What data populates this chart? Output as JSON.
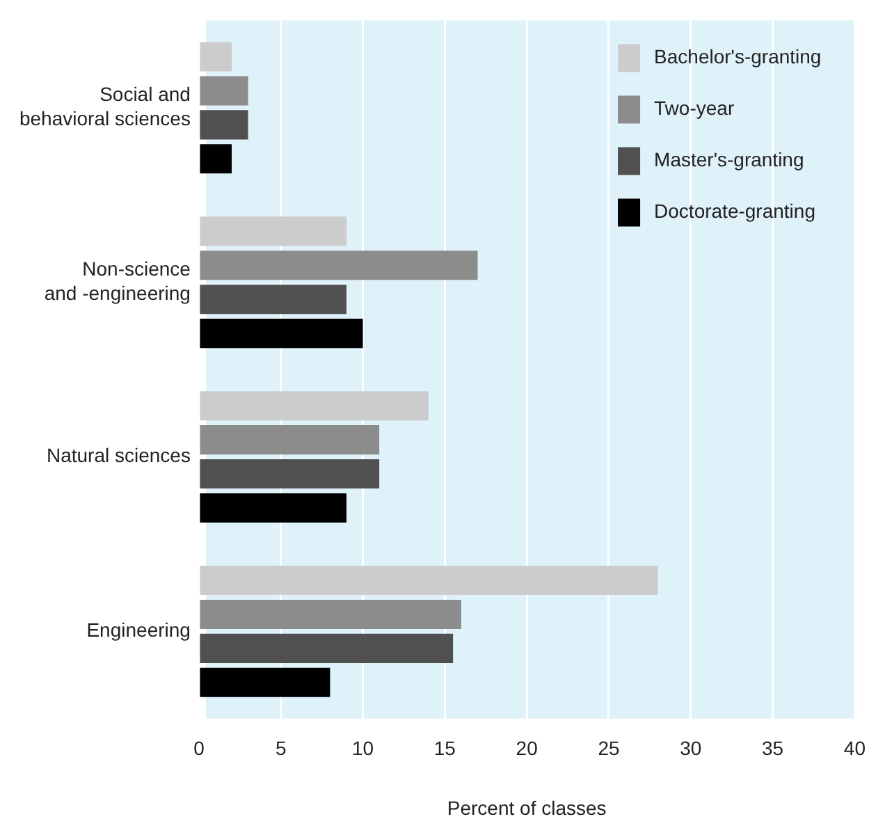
{
  "chart_data": {
    "type": "bar",
    "orientation": "horizontal",
    "xlabel": "Percent of classes",
    "categories": [
      "Social and\nbehavioral sciences",
      "Non-science\nand -engineering",
      "Natural sciences",
      "Engineering"
    ],
    "series": [
      {
        "name": "Bachelor's-granting",
        "color": "#cccccc",
        "values": [
          2,
          9,
          14,
          28
        ]
      },
      {
        "name": "Two-year",
        "color": "#8c8c8c",
        "values": [
          3,
          17,
          11,
          16
        ]
      },
      {
        "name": "Master's-granting",
        "color": "#505050",
        "values": [
          3,
          9,
          11,
          15.5
        ]
      },
      {
        "name": "Doctorate-granting",
        "color": "#000000",
        "values": [
          2,
          10,
          9,
          8
        ]
      }
    ],
    "xlim": [
      0,
      40
    ],
    "xticks": [
      0,
      5,
      10,
      15,
      20,
      25,
      30,
      35,
      40
    ],
    "grid": "x",
    "legend": "top right"
  }
}
